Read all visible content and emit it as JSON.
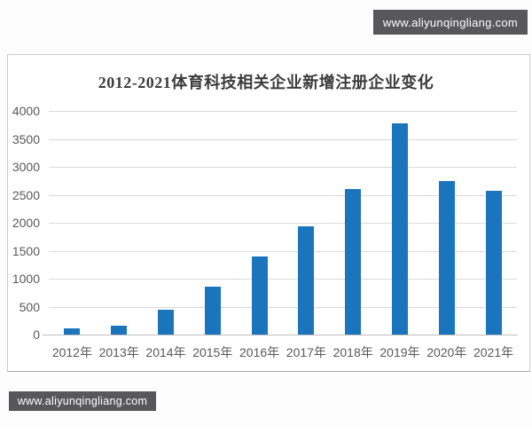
{
  "watermark": {
    "text": "www.aliyunqingliang.com",
    "bg_color": "#58585a",
    "text_color": "#ffffff"
  },
  "chart_data": {
    "type": "bar",
    "title": "2012-2021体育科技相关企业新增注册企业变化",
    "categories": [
      "2012年",
      "2013年",
      "2014年",
      "2015年",
      "2016年",
      "2017年",
      "2018年",
      "2019年",
      "2020年",
      "2021年"
    ],
    "values": [
      110,
      160,
      450,
      850,
      1390,
      1930,
      2600,
      3770,
      2740,
      2570
    ],
    "xlabel": "",
    "ylabel": "",
    "ylim": [
      0,
      4000
    ],
    "yticks": [
      0,
      500,
      1000,
      1500,
      2000,
      2500,
      3000,
      3500,
      4000
    ],
    "grid": "horizontal",
    "legend": "none",
    "bar_color": "#1b75bc",
    "gridline_color": "#d9d9d9",
    "axis_text_color": "#595959",
    "title_color": "#3c3c3c"
  }
}
